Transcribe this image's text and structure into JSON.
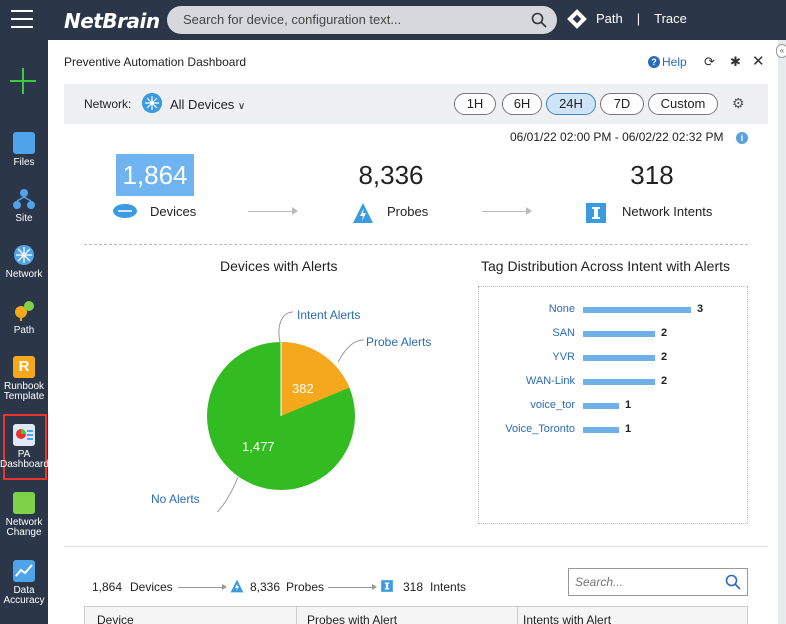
{
  "topbar": {
    "logo": "NetBrain",
    "search_placeholder": "Search for device, configuration text...",
    "path_label": "Path",
    "separator": "|",
    "trace_label": "Trace"
  },
  "leftnav": {
    "items": [
      {
        "label": "Files",
        "icon": "folder-icon"
      },
      {
        "label": "Site",
        "icon": "site-icon"
      },
      {
        "label": "Network",
        "icon": "network-icon"
      },
      {
        "label": "Path",
        "icon": "path-icon"
      },
      {
        "label": "Runbook Template",
        "icon": "runbook-icon"
      },
      {
        "label": "PA Dashboard",
        "icon": "pa-dashboard-icon"
      },
      {
        "label": "Network Change",
        "icon": "network-change-icon"
      },
      {
        "label": "Data Accuracy",
        "icon": "data-accuracy-icon"
      }
    ]
  },
  "panel": {
    "title": "Preventive Automation Dashboard",
    "help_label": "Help"
  },
  "filter": {
    "network_label": "Network:",
    "network_value": "All Devices",
    "time_buttons": [
      "1H",
      "6H",
      "24H",
      "7D",
      "Custom"
    ],
    "active_time": "24H"
  },
  "date_range": "06/01/22 02:00 PM - 06/02/22 02:32 PM",
  "stats": {
    "devices_value": "1,864",
    "devices_label": "Devices",
    "probes_value": "8,336",
    "probes_label": "Probes",
    "intents_value": "318",
    "intents_label": "Network Intents"
  },
  "devices_with_alerts": {
    "title": "Devices with Alerts",
    "labels": [
      "Intent Alerts",
      "Probe Alerts",
      "No Alerts"
    ],
    "values": [
      "382",
      "1,477"
    ]
  },
  "tag_distribution": {
    "title": "Tag Distribution Across Intent with Alerts",
    "rows": [
      {
        "name": "None",
        "value": 3
      },
      {
        "name": "SAN",
        "value": 2
      },
      {
        "name": "YVR",
        "value": 2
      },
      {
        "name": "WAN-Link",
        "value": 2
      },
      {
        "name": "voice_tor",
        "value": 1
      },
      {
        "name": "Voice_Toronto",
        "value": 1
      }
    ]
  },
  "bottom": {
    "devices_value": "1,864",
    "devices_label": "Devices",
    "probes_value": "8,336",
    "probes_label": "Probes",
    "intents_value": "318",
    "intents_label": "Intents",
    "search_placeholder": "Search...",
    "columns": [
      "Device",
      "Probes with Alert",
      "Intents with Alert"
    ]
  },
  "colors": {
    "green": "#33bb22",
    "orange": "#f6a81d",
    "highlight": "#6fb3f0",
    "nav_bg": "#2b3748",
    "callout": "#e8332f"
  }
}
